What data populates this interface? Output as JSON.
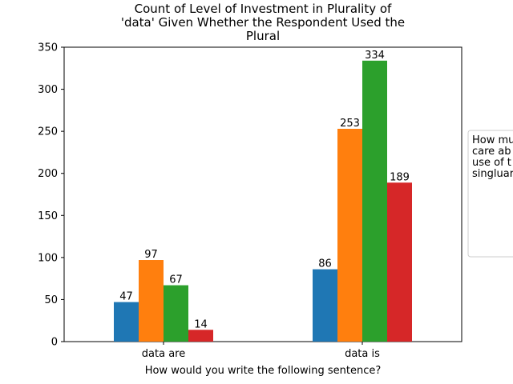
{
  "chart_data": {
    "type": "bar",
    "title_lines": [
      "Count of Level of Investment in Plurality of",
      "'data' Given Whether the Respondent Used the",
      "Plural"
    ],
    "xlabel": "How would you write the following sentence?",
    "ylabel": "",
    "categories": [
      "data are",
      "data is"
    ],
    "ylim": [
      0,
      350
    ],
    "yticks": [
      "0",
      "50",
      "100",
      "150",
      "200",
      "250",
      "300",
      "350"
    ],
    "grid": false,
    "series": [
      {
        "color": "#1f77b4",
        "values": [
          47,
          86
        ]
      },
      {
        "color": "#ff7f0e",
        "values": [
          97,
          253
        ]
      },
      {
        "color": "#2ca02c",
        "values": [
          67,
          334
        ]
      },
      {
        "color": "#d62728",
        "values": [
          14,
          189
        ]
      }
    ],
    "legend": {
      "placement": "right, clipped",
      "title_lines": [
        "How mu",
        "care ab",
        "use of t",
        "singluar"
      ]
    }
  }
}
